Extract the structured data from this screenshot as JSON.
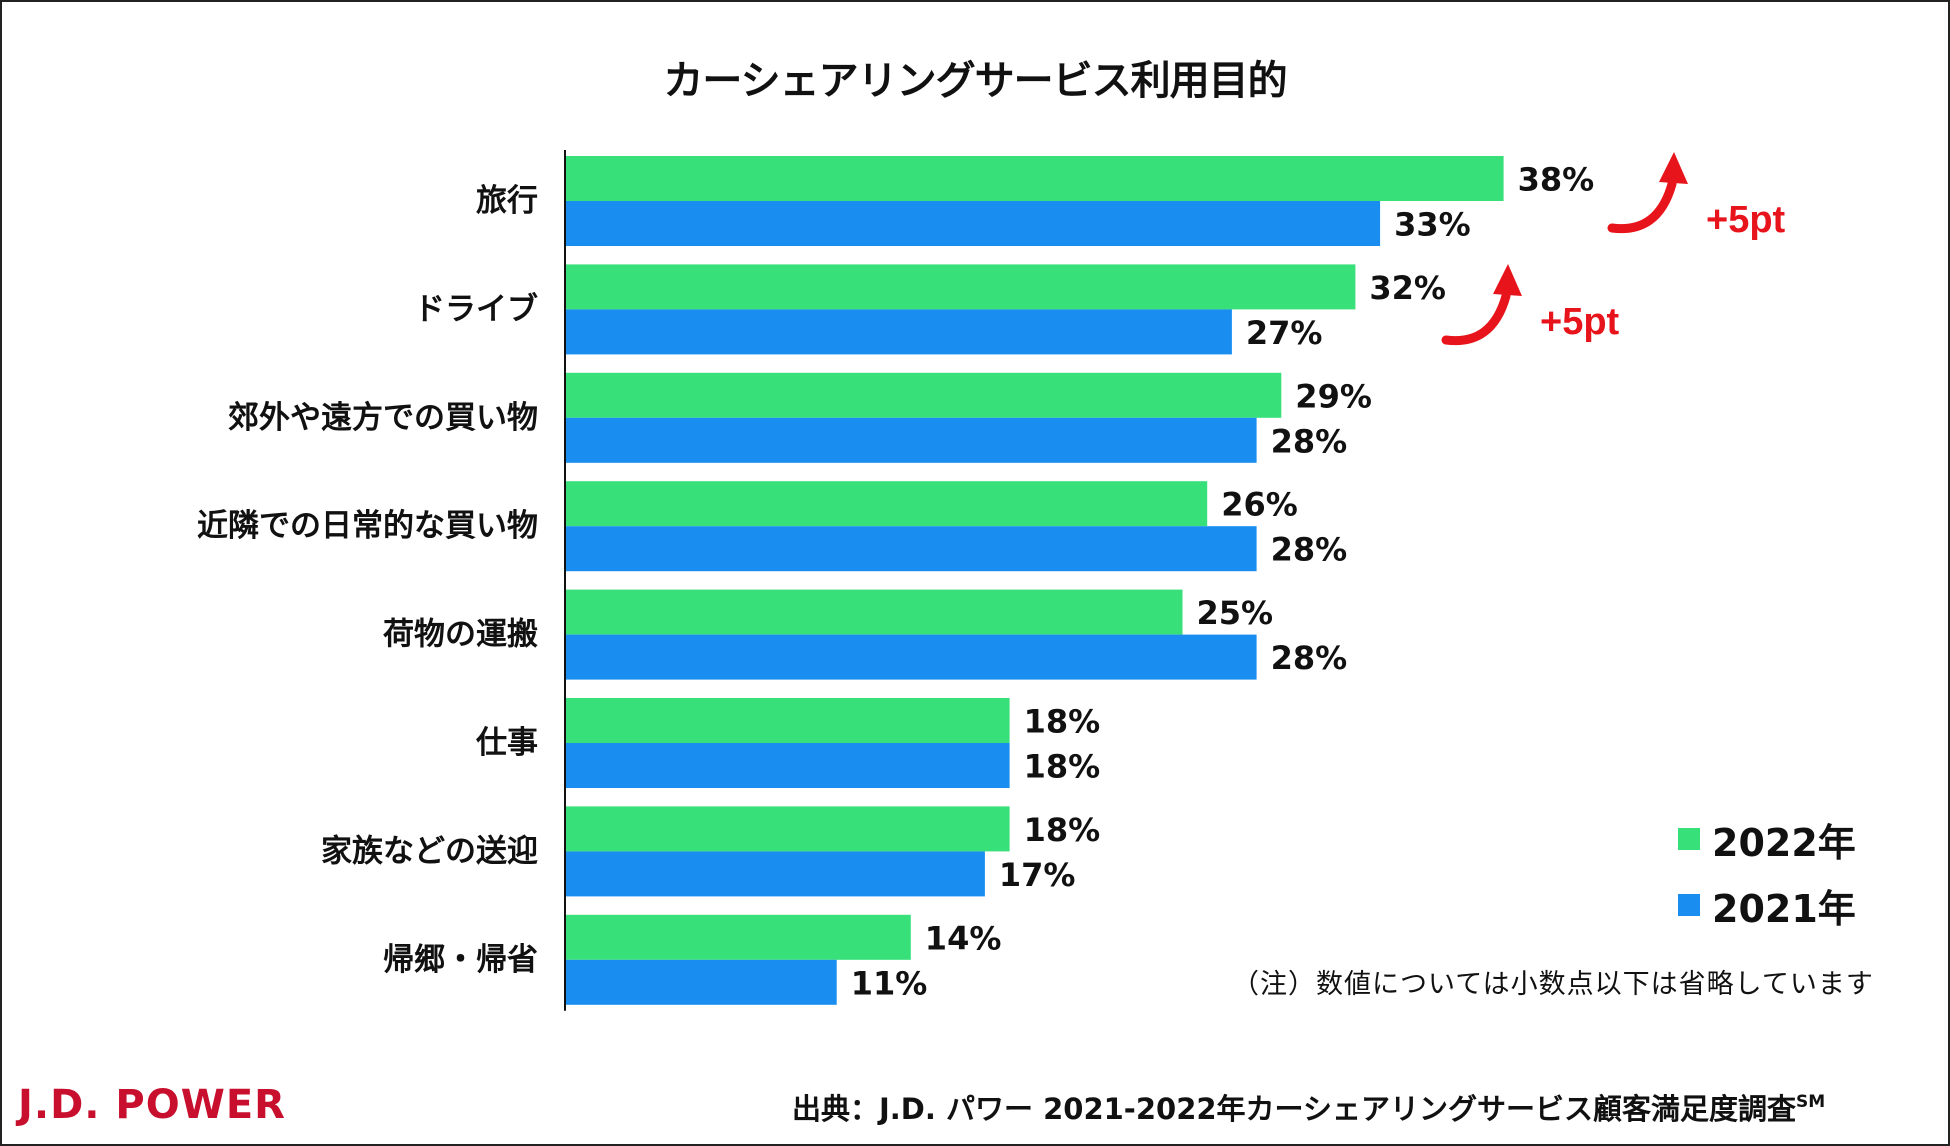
{
  "chart_data": {
    "type": "bar",
    "orientation": "horizontal",
    "title": "カーシェアリングサービス利用目的",
    "categories": [
      "旅行",
      "ドライブ",
      "郊外や遠方での買い物",
      "近隣での日常的な買い物",
      "荷物の運搬",
      "仕事",
      "家族などの送迎",
      "帰郷・帰省"
    ],
    "series": [
      {
        "name": "2022年",
        "color": "#38e079",
        "values": [
          38,
          32,
          29,
          26,
          25,
          18,
          18,
          14
        ]
      },
      {
        "name": "2021年",
        "color": "#1a8ef0",
        "values": [
          33,
          27,
          28,
          28,
          28,
          18,
          17,
          11
        ]
      }
    ],
    "value_labels": {
      "2022年": [
        "38%",
        "32%",
        "29%",
        "26%",
        "25%",
        "18%",
        "18%",
        "14%"
      ],
      "2021年": [
        "33%",
        "27%",
        "28%",
        "28%",
        "28%",
        "18%",
        "17%",
        "11%"
      ]
    },
    "annotations": [
      {
        "category": "旅行",
        "text": "+5pt",
        "color": "#e8141b"
      },
      {
        "category": "ドライブ",
        "text": "+5pt",
        "color": "#e8141b"
      }
    ],
    "legend_position": "bottom-right",
    "grid": false
  },
  "note": "（注）数値については小数点以下は省略しています",
  "logo": {
    "text": "J.D. POWER",
    "color": "#c8102e"
  },
  "source": {
    "text": "出典：J.D. パワー 2021-2022年カーシェアリングサービス顧客満足度調査",
    "sup": "SM"
  }
}
